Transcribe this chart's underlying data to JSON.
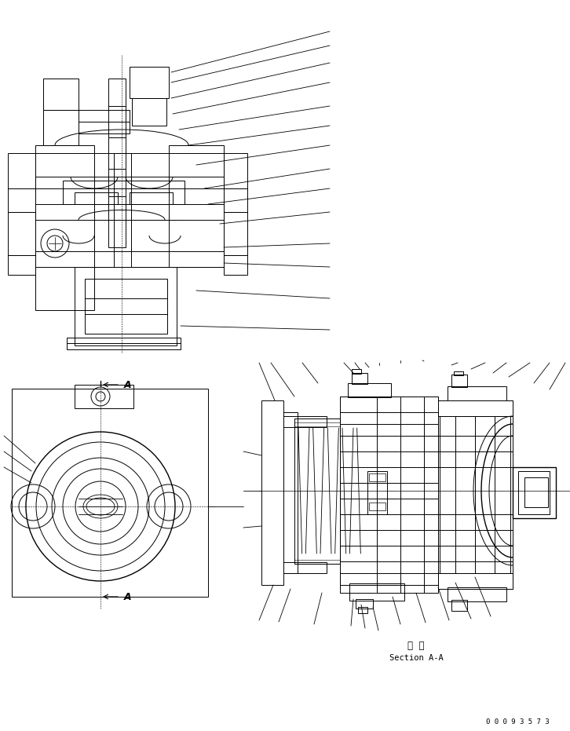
{
  "bg_color": "#ffffff",
  "line_color": "#000000",
  "fig_width": 7.26,
  "fig_height": 9.31,
  "dpi": 100,
  "section_text1": "断  面",
  "section_text2": "Section A-A",
  "part_number": "0 0 0 9 3 5 7 3"
}
